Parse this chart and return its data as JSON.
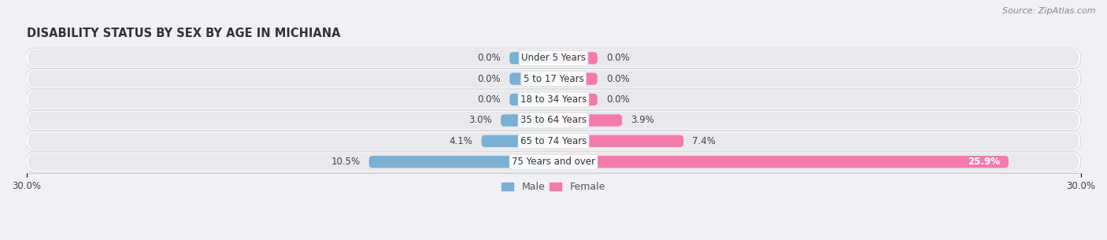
{
  "title": "DISABILITY STATUS BY SEX BY AGE IN MICHIANA",
  "source": "Source: ZipAtlas.com",
  "categories": [
    "Under 5 Years",
    "5 to 17 Years",
    "18 to 34 Years",
    "35 to 64 Years",
    "65 to 74 Years",
    "75 Years and over"
  ],
  "male_values": [
    0.0,
    0.0,
    0.0,
    3.0,
    4.1,
    10.5
  ],
  "female_values": [
    0.0,
    0.0,
    0.0,
    3.9,
    7.4,
    25.9
  ],
  "male_color": "#7bafd4",
  "female_color": "#f47aac",
  "row_bg_color": "#e8e8ed",
  "x_min": -30.0,
  "x_max": 30.0,
  "min_bar_width": 2.5,
  "bar_height": 0.58,
  "label_fontsize": 8.5,
  "title_fontsize": 10.5,
  "legend_labels": [
    "Male",
    "Female"
  ],
  "background_color": "#f0f0f5",
  "text_color": "#444444",
  "source_color": "#888888"
}
